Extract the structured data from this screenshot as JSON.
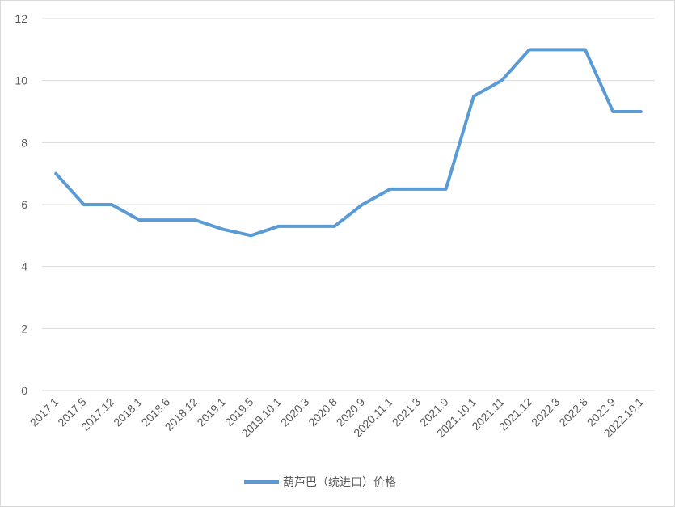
{
  "chart_data": {
    "type": "line",
    "categories": [
      "2017.1",
      "2017.5",
      "2017.12",
      "2018.1",
      "2018.6",
      "2018.12",
      "2019.1",
      "2019.5",
      "2019.10.1",
      "2020.3",
      "2020.8",
      "2020.9",
      "2020.11.1",
      "2021.3",
      "2021.9",
      "2021.10.1",
      "2021.11",
      "2021.12",
      "2022.3",
      "2022.8",
      "2022.9",
      "2022.10.1"
    ],
    "series": [
      {
        "name": "葫芦巴（统进口）价格",
        "color": "#5b9bd5",
        "values": [
          7,
          6,
          6,
          5.5,
          5.5,
          5.5,
          5.2,
          5,
          5.3,
          5.3,
          5.3,
          6,
          6.5,
          6.5,
          6.5,
          9.5,
          10,
          11,
          11,
          11,
          9,
          9
        ]
      }
    ],
    "ylim": [
      0,
      12
    ],
    "yticks": [
      0,
      2,
      4,
      6,
      8,
      10,
      12
    ],
    "grid": true,
    "legend": "bottom"
  }
}
